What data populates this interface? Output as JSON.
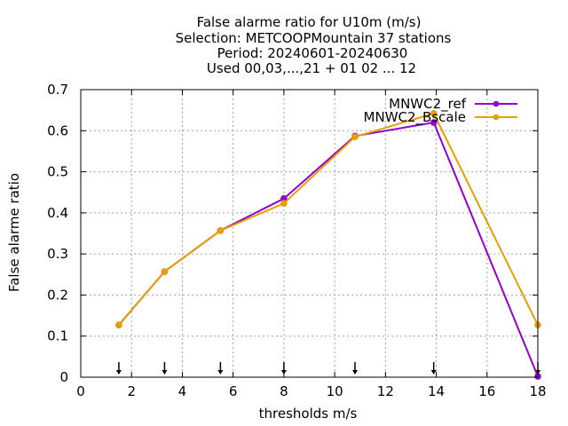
{
  "chart_data": {
    "type": "line",
    "title_lines": [
      "False alarme ratio  for U10m (m/s)",
      "Selection: METCOOPMountain     37 stations",
      "Period: 20240601-20240630",
      "Used 00,03,...,21 + 01 02 ... 12"
    ],
    "xlabel": "thresholds m/s",
    "ylabel": "False alarme ratio",
    "xlim": [
      0,
      18
    ],
    "ylim": [
      0,
      0.7
    ],
    "xticks": [
      0,
      2,
      4,
      6,
      8,
      10,
      12,
      14,
      16,
      18
    ],
    "yticks": [
      0,
      0.1,
      0.2,
      0.3,
      0.4,
      0.5,
      0.6,
      0.7
    ],
    "grid": true,
    "legend_position": "top-right",
    "threshold_markers": [
      1.5,
      3.3,
      5.5,
      8,
      10.8,
      13.9,
      18
    ],
    "series": [
      {
        "name": "MNWC2_ref",
        "legend_label": "MNWC2_ref",
        "color": "#9400d3",
        "x": [
          1.5,
          3.3,
          5.5,
          8,
          10.8,
          13.9,
          18
        ],
        "y": [
          0.127,
          0.257,
          0.357,
          0.435,
          0.587,
          0.62,
          0.002
        ]
      },
      {
        "name": "MNWC2_Bscale",
        "legend_label": "MNWC2_Bscale",
        "color": "#e69f00",
        "x": [
          1.5,
          3.3,
          5.5,
          8,
          10.8,
          13.9,
          18
        ],
        "y": [
          0.127,
          0.257,
          0.357,
          0.423,
          0.585,
          0.642,
          0.127
        ]
      }
    ]
  }
}
